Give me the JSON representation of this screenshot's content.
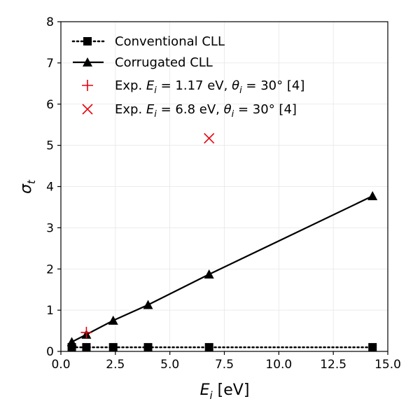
{
  "chart_data": {
    "type": "line",
    "xlabel_symbol": "E",
    "xlabel_sub": "i",
    "xlabel_unit": " [eV]",
    "ylabel_symbol": "σ",
    "ylabel_sub": "t",
    "xlim": [
      0,
      15
    ],
    "ylim": [
      0,
      8
    ],
    "grid": true,
    "legend_position": "top-left",
    "x_ticks": [
      0.0,
      2.5,
      5.0,
      7.5,
      10.0,
      12.5,
      15.0
    ],
    "x_tick_labels": [
      "0.0",
      "2.5",
      "5.0",
      "7.5",
      "10.0",
      "12.5",
      "15.0"
    ],
    "y_ticks": [
      0,
      1,
      2,
      3,
      4,
      5,
      6,
      7,
      8
    ],
    "y_tick_labels": [
      "0",
      "1",
      "2",
      "3",
      "4",
      "5",
      "6",
      "7",
      "8"
    ],
    "series": [
      {
        "name": "Conventional CLL",
        "marker": "square",
        "line": "dotted",
        "color": "#000000",
        "x": [
          0.5,
          1.17,
          2.4,
          4.0,
          6.8,
          14.3
        ],
        "y": [
          0.1,
          0.1,
          0.1,
          0.1,
          0.1,
          0.1
        ]
      },
      {
        "name": "Corrugated CLL",
        "marker": "triangle",
        "line": "solid",
        "color": "#000000",
        "x": [
          0.5,
          1.17,
          2.4,
          4.0,
          6.8,
          14.3
        ],
        "y": [
          0.23,
          0.41,
          0.75,
          1.13,
          1.87,
          3.77
        ]
      },
      {
        "name_parts": [
          "Exp. ",
          "E",
          "i",
          " = 1.17 eV, ",
          "θ",
          "i",
          " = 30° [4]"
        ],
        "marker": "plus",
        "line": "none",
        "color": "#e8000b",
        "x": [
          1.17
        ],
        "y": [
          0.46
        ]
      },
      {
        "name_parts": [
          "Exp. ",
          "E",
          "i",
          " = 6.8 eV, ",
          "θ",
          "i",
          " = 30° [4]"
        ],
        "marker": "x",
        "line": "none",
        "color": "#e8000b",
        "x": [
          6.8
        ],
        "y": [
          5.17
        ]
      }
    ]
  }
}
